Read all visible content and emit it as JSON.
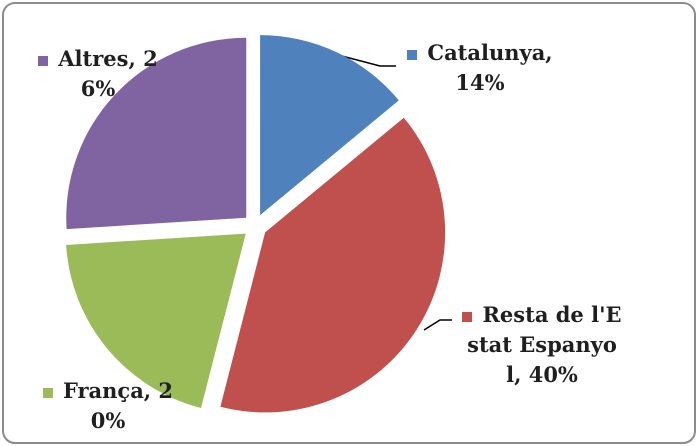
{
  "chart_data": {
    "type": "pie",
    "value_labels": [
      "Catalunya, 14%",
      "Resta de l'Estat Espanyol, 40%",
      "França, 20%",
      "Altres, 26%"
    ],
    "values": [
      14,
      40,
      20,
      26
    ],
    "colors": [
      "#4f81bd",
      "#c0504d",
      "#9bbb59",
      "#8064a2"
    ]
  }
}
